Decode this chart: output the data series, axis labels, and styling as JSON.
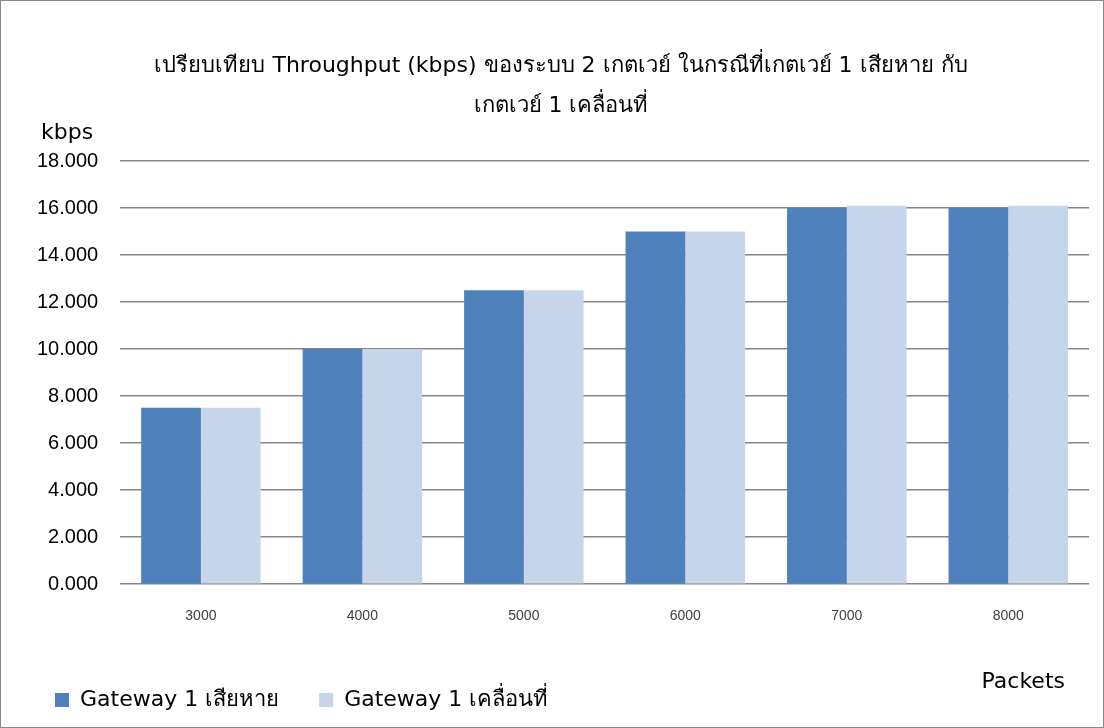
{
  "chart_data": {
    "type": "bar",
    "title": "เปรียบเทียบ Throughput (kbps) ของระบบ 2 เกตเวย์ ในกรณีที่เกตเวย์ 1 เสียหาย กับเกตเวย์ 1 เคลื่อนที่",
    "ylabel": "kbps",
    "xlabel": "Packets",
    "categories": [
      "3000",
      "4000",
      "5000",
      "6000",
      "7000",
      "8000"
    ],
    "series": [
      {
        "name": "Gateway 1 เสียหาย",
        "color": "#4f81bd",
        "values": [
          7.5,
          10,
          12.5,
          15,
          16,
          16
        ]
      },
      {
        "name": "Gateway 1 เคลื่อนที่",
        "color": "#c6d5ea",
        "values": [
          7.5,
          10,
          12.5,
          15,
          16.1,
          16.1
        ]
      }
    ],
    "ylim": [
      0,
      18
    ],
    "yticks": [
      {
        "value": 0,
        "label": "0.000"
      },
      {
        "value": 2,
        "label": "2.000"
      },
      {
        "value": 4,
        "label": "4.000"
      },
      {
        "value": 6,
        "label": "6.000"
      },
      {
        "value": 8,
        "label": "8.000"
      },
      {
        "value": 10,
        "label": "10.000"
      },
      {
        "value": 12,
        "label": "12.000"
      },
      {
        "value": 14,
        "label": "14.000"
      },
      {
        "value": 16,
        "label": "16.000"
      },
      {
        "value": 18,
        "label": "18.000"
      }
    ],
    "grid": "y",
    "legend": "bottom"
  }
}
